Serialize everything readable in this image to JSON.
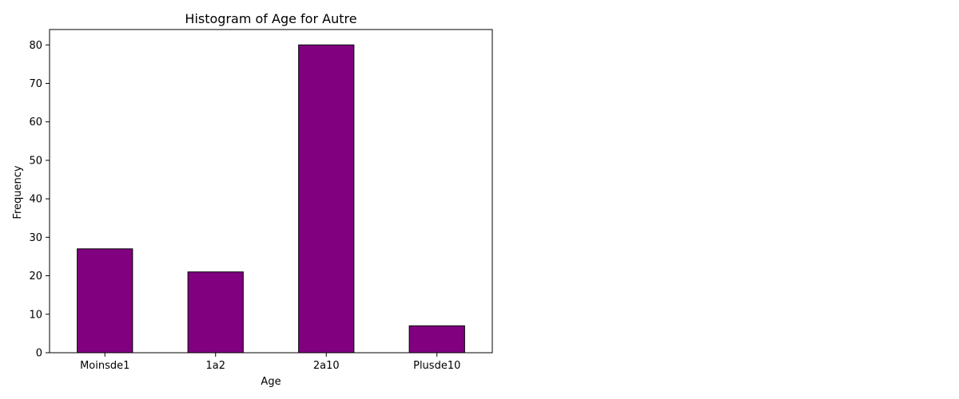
{
  "chart_data": {
    "type": "bar",
    "title": "Histogram of Age for Autre",
    "xlabel": "Age",
    "ylabel": "Frequency",
    "categories": [
      "Moinsde1",
      "1a2",
      "2a10",
      "Plusde10"
    ],
    "values": [
      27,
      21,
      80,
      7
    ],
    "ylim": [
      0,
      84
    ],
    "yticks": [
      0,
      10,
      20,
      30,
      40,
      50,
      60,
      70,
      80
    ],
    "grid": false,
    "bar_color": "#800080",
    "edge_color": "#000000"
  }
}
